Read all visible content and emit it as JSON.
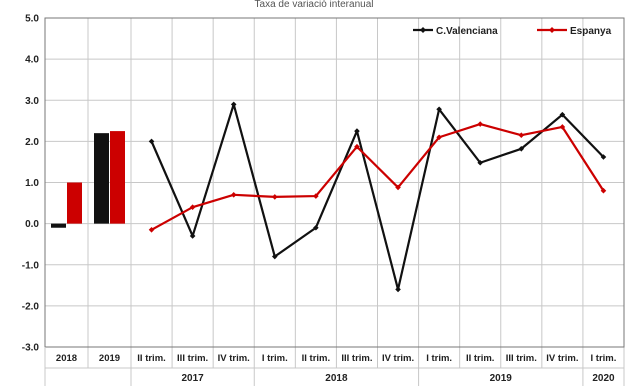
{
  "chart_data": {
    "type": "bar+line",
    "title": "Taxa de variació interanual",
    "ylim": [
      -3.0,
      5.0
    ],
    "yticks": [
      "5.0",
      "4.0",
      "3.0",
      "2.0",
      "1.0",
      "0.0",
      "-1.0",
      "-2.0",
      "-3.0"
    ],
    "ytick_values": [
      5,
      4,
      3,
      2,
      1,
      0,
      -1,
      -2,
      -3
    ],
    "grid": true,
    "legend_position": "top-right",
    "annual": {
      "categories": [
        "2018",
        "2019"
      ],
      "series": [
        {
          "name": "C.Valenciana",
          "color": "#111111",
          "values": [
            -0.1,
            2.2
          ]
        },
        {
          "name": "Espanya",
          "color": "#cc0000",
          "values": [
            1.0,
            2.25
          ]
        }
      ]
    },
    "quarterly": {
      "categories": [
        "II trim.",
        "III trim.",
        "IV trim.",
        "I trim.",
        "II trim.",
        "III trim.",
        "IV trim.",
        "I trim.",
        "II trim.",
        "III trim.",
        "IV trim.",
        "I trim."
      ],
      "year_groups": [
        {
          "label": "2017",
          "span": 3
        },
        {
          "label": "2018",
          "span": 4
        },
        {
          "label": "2019",
          "span": 4
        },
        {
          "label": "2020",
          "span": 1
        }
      ],
      "series": [
        {
          "name": "C.Valenciana",
          "color": "#111111",
          "values": [
            2.0,
            -0.3,
            2.9,
            -0.8,
            -0.1,
            2.25,
            -1.6,
            2.78,
            1.48,
            1.82,
            2.65,
            1.62
          ]
        },
        {
          "name": "Espanya",
          "color": "#cc0000",
          "values": [
            -0.15,
            0.4,
            0.7,
            0.65,
            0.67,
            1.87,
            0.88,
            2.1,
            2.42,
            2.15,
            2.35,
            0.8
          ]
        }
      ]
    }
  },
  "colors": {
    "cv": "#111111",
    "es": "#cc0000",
    "grid": "#c8c8c8",
    "axis": "#777777"
  }
}
